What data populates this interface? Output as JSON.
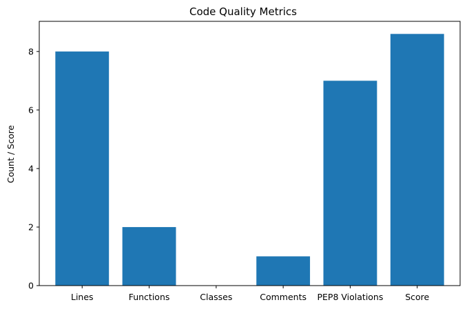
{
  "chart_data": {
    "type": "bar",
    "title": "Code Quality Metrics",
    "xlabel": "",
    "ylabel": "Count / Score",
    "categories": [
      "Lines",
      "Functions",
      "Classes",
      "Comments",
      "PEP8 Violations",
      "Score"
    ],
    "values": [
      8,
      2,
      0,
      1,
      7,
      8.6
    ],
    "ylim": [
      0,
      9.03
    ],
    "yticks": [
      0,
      2,
      4,
      6,
      8
    ],
    "grid": false,
    "bar_color": "#1f77b4"
  }
}
